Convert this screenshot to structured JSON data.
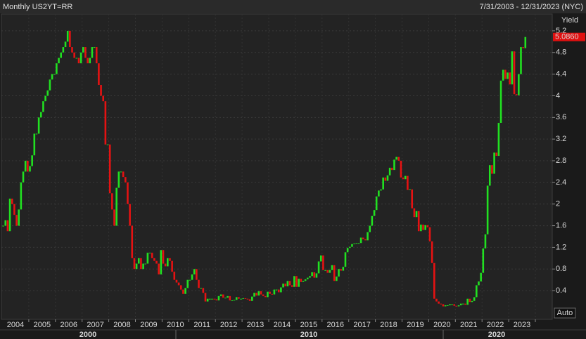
{
  "chart_data": {
    "type": "candlestick",
    "title": "Monthly US2YT=RR",
    "date_range": "7/31/2003 - 12/31/2023 (NYC)",
    "y_axis_label": "Yield",
    "auto_button": "Auto",
    "start": 2004,
    "last_value_label": "5.0860",
    "up_color": "#21e021",
    "down_color": "#e51212",
    "values": [
      1.6,
      1.7,
      1.5,
      2.1,
      2.0,
      1.8,
      1.6,
      1.9,
      2.4,
      2.6,
      2.8,
      2.6,
      2.7,
      2.9,
      3.3,
      3.3,
      3.6,
      3.7,
      3.9,
      4.0,
      4.1,
      4.3,
      4.4,
      4.4,
      4.6,
      4.7,
      4.8,
      4.9,
      5.0,
      5.2,
      4.9,
      4.8,
      4.7,
      4.7,
      4.6,
      4.8,
      4.9,
      4.7,
      4.6,
      4.7,
      4.9,
      4.9,
      4.6,
      4.2,
      4.0,
      3.9,
      3.1,
      3.1,
      2.2,
      1.9,
      1.6,
      2.3,
      2.6,
      2.6,
      2.5,
      2.4,
      2.0,
      1.6,
      1.0,
      0.8,
      0.9,
      1.0,
      0.8,
      0.9,
      0.9,
      1.1,
      1.1,
      1.0,
      0.95,
      0.9,
      0.7,
      1.15,
      0.9,
      0.85,
      1.0,
      0.95,
      0.75,
      0.6,
      0.55,
      0.5,
      0.42,
      0.34,
      0.45,
      0.6,
      0.6,
      0.7,
      0.8,
      0.6,
      0.45,
      0.45,
      0.36,
      0.2,
      0.25,
      0.25,
      0.25,
      0.24,
      0.22,
      0.3,
      0.33,
      0.27,
      0.27,
      0.3,
      0.22,
      0.22,
      0.23,
      0.28,
      0.25,
      0.25,
      0.26,
      0.25,
      0.24,
      0.21,
      0.29,
      0.36,
      0.31,
      0.39,
      0.33,
      0.3,
      0.28,
      0.38,
      0.34,
      0.33,
      0.42,
      0.42,
      0.37,
      0.46,
      0.53,
      0.48,
      0.58,
      0.5,
      0.47,
      0.67,
      0.47,
      0.62,
      0.56,
      0.58,
      0.61,
      0.64,
      0.67,
      0.74,
      0.64,
      0.72,
      0.94,
      1.05,
      0.78,
      0.78,
      0.73,
      0.78,
      0.87,
      0.58,
      0.66,
      0.8,
      0.77,
      0.84,
      1.11,
      1.19,
      1.21,
      1.26,
      1.27,
      1.28,
      1.28,
      1.38,
      1.35,
      1.33,
      1.48,
      1.6,
      1.78,
      1.89,
      2.14,
      2.25,
      2.27,
      2.49,
      2.43,
      2.53,
      2.67,
      2.63,
      2.82,
      2.87,
      2.8,
      2.49,
      2.46,
      2.52,
      2.26,
      2.27,
      1.92,
      1.76,
      1.87,
      1.5,
      1.62,
      1.52,
      1.61,
      1.57,
      1.31,
      0.91,
      0.25,
      0.2,
      0.16,
      0.15,
      0.11,
      0.13,
      0.13,
      0.15,
      0.15,
      0.12,
      0.11,
      0.13,
      0.16,
      0.16,
      0.14,
      0.25,
      0.19,
      0.21,
      0.28,
      0.5,
      0.57,
      0.73,
      1.18,
      1.44,
      2.34,
      2.72,
      2.56,
      2.95,
      2.89,
      3.5,
      4.28,
      4.48,
      4.31,
      4.43,
      4.21,
      4.82,
      4.03,
      4.01,
      4.4,
      4.9,
      4.88,
      5.086
    ],
    "ylim": [
      -0.13,
      5.51
    ],
    "yticks": [
      0.4,
      0.8,
      1.2,
      1.6,
      2,
      2.4,
      2.8,
      3.2,
      3.6,
      4,
      4.4,
      4.8,
      5.2
    ],
    "year_labels": [
      2004,
      2005,
      2006,
      2007,
      2008,
      2009,
      2010,
      2011,
      2012,
      2013,
      2014,
      2015,
      2016,
      2017,
      2018,
      2019,
      2020,
      2021,
      2022,
      2023
    ],
    "decade_labels": [
      "2000",
      "2010",
      "2020"
    ],
    "grid": true
  }
}
